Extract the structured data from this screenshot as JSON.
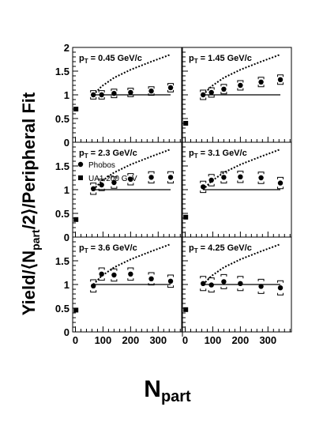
{
  "figure": {
    "ylabel_parts": [
      "Yield/⟨N",
      "part",
      "/2⟩/Peripheral Fit"
    ],
    "xlabel_main": "N",
    "xlabel_sub": "part"
  },
  "chart_data": {
    "type": "scatter",
    "ylim": [
      0,
      2
    ],
    "xlim": [
      -10,
      385
    ],
    "yticks": [
      "0",
      "0.5",
      "1",
      "1.5",
      "2"
    ],
    "xticks": [
      "0",
      "100",
      "200",
      "300"
    ],
    "legend": {
      "placement": "left-center",
      "entries": [
        {
          "label": "Phobos",
          "marker": "circle"
        },
        {
          "label": "UA1 200 GeV",
          "marker": "square"
        }
      ]
    },
    "panels": [
      {
        "pt_label": "p",
        "pt_sub": "T",
        "pt_value": " = 0.45 GeV/c",
        "phobos": [
          {
            "x": 65,
            "y": 1.0,
            "err": 0.09
          },
          {
            "x": 95,
            "y": 1.0,
            "err": 0.09
          },
          {
            "x": 140,
            "y": 1.03,
            "err": 0.09
          },
          {
            "x": 200,
            "y": 1.05,
            "err": 0.09
          },
          {
            "x": 275,
            "y": 1.08,
            "err": 0.09
          },
          {
            "x": 345,
            "y": 1.15,
            "err": 0.09
          }
        ],
        "ua1": {
          "x": 2,
          "y": 0.7
        },
        "ncoll_curve": [
          [
            65,
            1.0
          ],
          [
            95,
            1.18
          ],
          [
            140,
            1.36
          ],
          [
            200,
            1.53
          ],
          [
            275,
            1.7
          ],
          [
            345,
            1.85
          ]
        ],
        "fit_line": {
          "x": [
            65,
            345
          ],
          "y": 1.0
        }
      },
      {
        "pt_label": "p",
        "pt_sub": "T",
        "pt_value": " = 1.45 GeV/c",
        "phobos": [
          {
            "x": 65,
            "y": 1.0,
            "err": 0.1
          },
          {
            "x": 95,
            "y": 1.05,
            "err": 0.1
          },
          {
            "x": 140,
            "y": 1.12,
            "err": 0.1
          },
          {
            "x": 200,
            "y": 1.2,
            "err": 0.1
          },
          {
            "x": 275,
            "y": 1.27,
            "err": 0.1
          },
          {
            "x": 345,
            "y": 1.32,
            "err": 0.1
          }
        ],
        "ua1": {
          "x": 2,
          "y": 0.4
        },
        "ncoll_curve": [
          [
            65,
            1.0
          ],
          [
            95,
            1.18
          ],
          [
            140,
            1.36
          ],
          [
            200,
            1.53
          ],
          [
            275,
            1.7
          ],
          [
            345,
            1.85
          ]
        ],
        "fit_line": {
          "x": [
            65,
            345
          ],
          "y": 1.0
        }
      },
      {
        "pt_label": "p",
        "pt_sub": "T",
        "pt_value": " = 2.3 GeV/c",
        "phobos": [
          {
            "x": 65,
            "y": 1.02,
            "err": 0.12
          },
          {
            "x": 95,
            "y": 1.1,
            "err": 0.12
          },
          {
            "x": 140,
            "y": 1.15,
            "err": 0.12
          },
          {
            "x": 200,
            "y": 1.22,
            "err": 0.12
          },
          {
            "x": 275,
            "y": 1.26,
            "err": 0.12
          },
          {
            "x": 345,
            "y": 1.26,
            "err": 0.12
          }
        ],
        "ua1": {
          "x": 2,
          "y": 0.37
        },
        "ncoll_curve": [
          [
            65,
            1.0
          ],
          [
            95,
            1.18
          ],
          [
            140,
            1.36
          ],
          [
            200,
            1.53
          ],
          [
            275,
            1.7
          ],
          [
            345,
            1.85
          ]
        ],
        "fit_line": {
          "x": [
            65,
            345
          ],
          "y": 1.0
        }
      },
      {
        "pt_label": "p",
        "pt_sub": "T",
        "pt_value": " = 3.1 GeV/c",
        "phobos": [
          {
            "x": 65,
            "y": 1.06,
            "err": 0.12
          },
          {
            "x": 95,
            "y": 1.2,
            "err": 0.12
          },
          {
            "x": 140,
            "y": 1.26,
            "err": 0.12
          },
          {
            "x": 200,
            "y": 1.27,
            "err": 0.12
          },
          {
            "x": 275,
            "y": 1.25,
            "err": 0.12
          },
          {
            "x": 345,
            "y": 1.14,
            "err": 0.12
          }
        ],
        "ua1": {
          "x": 2,
          "y": 0.42
        },
        "ncoll_curve": [
          [
            65,
            1.0
          ],
          [
            95,
            1.18
          ],
          [
            140,
            1.36
          ],
          [
            200,
            1.53
          ],
          [
            275,
            1.7
          ],
          [
            345,
            1.85
          ]
        ],
        "fit_line": {
          "x": [
            65,
            345
          ],
          "y": 1.0
        }
      },
      {
        "pt_label": "p",
        "pt_sub": "T",
        "pt_value": " = 3.6 GeV/c",
        "phobos": [
          {
            "x": 65,
            "y": 0.97,
            "err": 0.13
          },
          {
            "x": 95,
            "y": 1.22,
            "err": 0.13
          },
          {
            "x": 140,
            "y": 1.2,
            "err": 0.13
          },
          {
            "x": 200,
            "y": 1.22,
            "err": 0.13
          },
          {
            "x": 275,
            "y": 1.12,
            "err": 0.13
          },
          {
            "x": 345,
            "y": 1.07,
            "err": 0.13
          }
        ],
        "ua1": {
          "x": 2,
          "y": 0.46
        },
        "ncoll_curve": [
          [
            65,
            1.0
          ],
          [
            95,
            1.18
          ],
          [
            140,
            1.36
          ],
          [
            200,
            1.53
          ],
          [
            275,
            1.7
          ],
          [
            345,
            1.85
          ]
        ],
        "fit_line": {
          "x": [
            65,
            345
          ],
          "y": 1.0
        }
      },
      {
        "pt_label": "p",
        "pt_sub": "T",
        "pt_value": " = 4.25 GeV/c",
        "phobos": [
          {
            "x": 65,
            "y": 1.02,
            "err": 0.15
          },
          {
            "x": 95,
            "y": 0.99,
            "err": 0.15
          },
          {
            "x": 140,
            "y": 1.06,
            "err": 0.15
          },
          {
            "x": 200,
            "y": 1.02,
            "err": 0.15
          },
          {
            "x": 275,
            "y": 0.96,
            "err": 0.15
          },
          {
            "x": 345,
            "y": 0.93,
            "err": 0.15
          }
        ],
        "ua1": {
          "x": 2,
          "y": 0.47
        },
        "ncoll_curve": [
          [
            65,
            1.0
          ],
          [
            95,
            1.18
          ],
          [
            140,
            1.36
          ],
          [
            200,
            1.53
          ],
          [
            275,
            1.7
          ],
          [
            345,
            1.85
          ]
        ],
        "fit_line": {
          "x": [
            65,
            345
          ],
          "y": 1.0
        }
      }
    ]
  }
}
